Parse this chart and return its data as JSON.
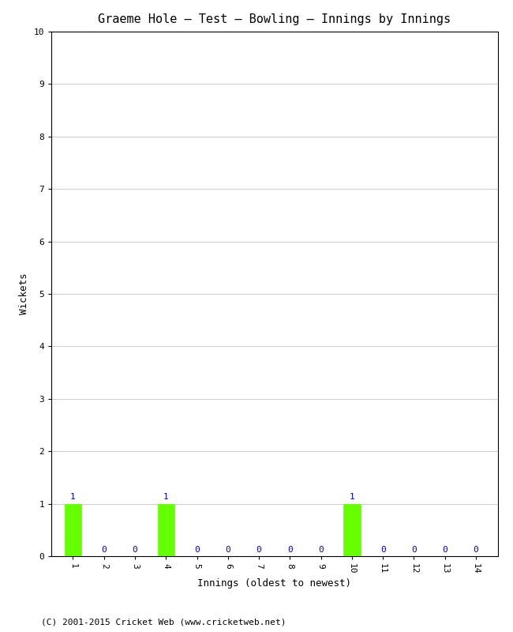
{
  "title": "Graeme Hole – Test – Bowling – Innings by Innings",
  "xlabel": "Innings (oldest to newest)",
  "ylabel": "Wickets",
  "footnote": "(C) 2001-2015 Cricket Web (www.cricketweb.net)",
  "innings": [
    1,
    2,
    3,
    4,
    5,
    6,
    7,
    8,
    9,
    10,
    11,
    12,
    13,
    14
  ],
  "wickets": [
    1,
    0,
    0,
    1,
    0,
    0,
    0,
    0,
    0,
    1,
    0,
    0,
    0,
    0
  ],
  "bar_color": "#66ff00",
  "label_color": "#0000cc",
  "ylim": [
    0,
    10
  ],
  "yticks": [
    0,
    1,
    2,
    3,
    4,
    5,
    6,
    7,
    8,
    9,
    10
  ],
  "background_color": "#ffffff",
  "grid_color": "#cccccc",
  "title_fontsize": 11,
  "axis_label_fontsize": 9,
  "tick_fontsize": 8,
  "label_fontsize": 8,
  "footnote_fontsize": 8
}
